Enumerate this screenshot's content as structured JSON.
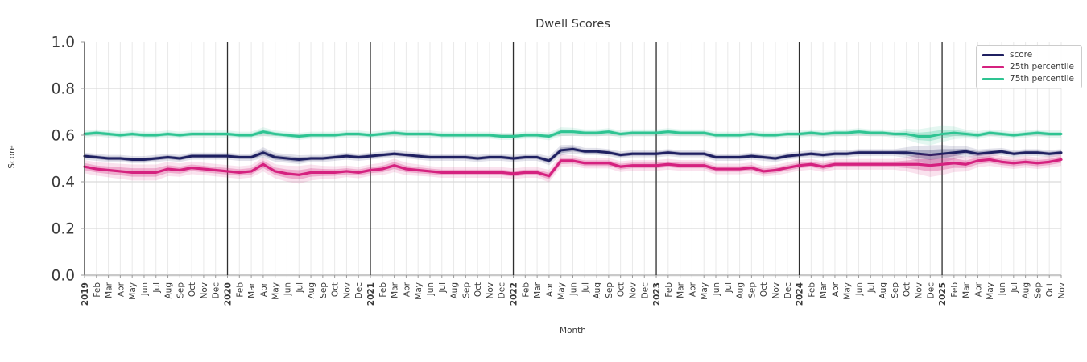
{
  "chart_data": {
    "type": "line",
    "title": "Dwell Scores",
    "xlabel": "Month",
    "ylabel": "Score",
    "ylim": [
      0.0,
      1.0
    ],
    "yticks": [
      0.0,
      0.2,
      0.4,
      0.6,
      0.8,
      1.0
    ],
    "grid": true,
    "legend_position": "upper right",
    "x_labels": [
      "2019",
      "Feb",
      "Mar",
      "Apr",
      "May",
      "Jun",
      "Jul",
      "Aug",
      "Sep",
      "Oct",
      "Nov",
      "Dec",
      "2020",
      "Feb",
      "Mar",
      "Apr",
      "May",
      "Jun",
      "Jul",
      "Aug",
      "Sep",
      "Oct",
      "Nov",
      "Dec",
      "2021",
      "Feb",
      "Mar",
      "Apr",
      "May",
      "Jun",
      "Jul",
      "Aug",
      "Sep",
      "Oct",
      "Nov",
      "Dec",
      "2022",
      "Feb",
      "Mar",
      "Apr",
      "May",
      "Jun",
      "Jul",
      "Aug",
      "Sep",
      "Oct",
      "Nov",
      "Dec",
      "2023",
      "Feb",
      "Mar",
      "Apr",
      "May",
      "Jun",
      "Jul",
      "Aug",
      "Sep",
      "Oct",
      "Nov",
      "Dec",
      "2024",
      "Feb",
      "Mar",
      "Apr",
      "May",
      "Jun",
      "Jul",
      "Aug",
      "Sep",
      "Oct",
      "Nov",
      "Dec",
      "2025",
      "Feb",
      "Mar",
      "Apr",
      "May",
      "Jun",
      "Jul",
      "Aug",
      "Sep",
      "Oct",
      "Nov"
    ],
    "series": [
      {
        "name": "score",
        "color": "#1f2061",
        "line_width": 3,
        "values": [
          0.51,
          0.505,
          0.5,
          0.5,
          0.495,
          0.495,
          0.5,
          0.505,
          0.5,
          0.51,
          0.51,
          0.51,
          0.51,
          0.505,
          0.505,
          0.525,
          0.505,
          0.5,
          0.495,
          0.5,
          0.5,
          0.505,
          0.51,
          0.505,
          0.51,
          0.515,
          0.52,
          0.515,
          0.51,
          0.505,
          0.505,
          0.505,
          0.505,
          0.5,
          0.505,
          0.505,
          0.5,
          0.505,
          0.505,
          0.49,
          0.535,
          0.54,
          0.53,
          0.53,
          0.525,
          0.515,
          0.52,
          0.52,
          0.52,
          0.525,
          0.52,
          0.52,
          0.52,
          0.505,
          0.505,
          0.505,
          0.51,
          0.505,
          0.5,
          0.51,
          0.515,
          0.52,
          0.515,
          0.52,
          0.52,
          0.525,
          0.525,
          0.525,
          0.525,
          0.525,
          0.52,
          0.515,
          0.52,
          0.525,
          0.53,
          0.52,
          0.525,
          0.53,
          0.52,
          0.525,
          0.525,
          0.52,
          0.525
        ],
        "band": [
          0.008,
          0.008,
          0.008,
          0.008,
          0.008,
          0.008,
          0.008,
          0.008,
          0.008,
          0.008,
          0.008,
          0.008,
          0.008,
          0.008,
          0.008,
          0.012,
          0.01,
          0.01,
          0.01,
          0.008,
          0.008,
          0.008,
          0.008,
          0.008,
          0.008,
          0.008,
          0.008,
          0.008,
          0.008,
          0.008,
          0.008,
          0.008,
          0.008,
          0.008,
          0.008,
          0.008,
          0.008,
          0.008,
          0.008,
          0.01,
          0.012,
          0.01,
          0.008,
          0.008,
          0.008,
          0.008,
          0.008,
          0.008,
          0.008,
          0.008,
          0.008,
          0.008,
          0.008,
          0.008,
          0.008,
          0.008,
          0.008,
          0.008,
          0.008,
          0.008,
          0.008,
          0.008,
          0.008,
          0.008,
          0.008,
          0.008,
          0.008,
          0.008,
          0.008,
          0.012,
          0.018,
          0.022,
          0.02,
          0.015,
          0.012,
          0.01,
          0.009,
          0.008,
          0.008,
          0.008,
          0.008,
          0.008,
          0.008
        ]
      },
      {
        "name": "25th percentile",
        "color": "#d5217f",
        "line_width": 3.2,
        "values": [
          0.465,
          0.455,
          0.45,
          0.445,
          0.44,
          0.44,
          0.44,
          0.455,
          0.45,
          0.46,
          0.455,
          0.45,
          0.445,
          0.44,
          0.445,
          0.475,
          0.445,
          0.435,
          0.43,
          0.44,
          0.44,
          0.44,
          0.445,
          0.44,
          0.45,
          0.455,
          0.47,
          0.455,
          0.45,
          0.445,
          0.44,
          0.44,
          0.44,
          0.44,
          0.44,
          0.44,
          0.435,
          0.44,
          0.44,
          0.425,
          0.49,
          0.49,
          0.48,
          0.48,
          0.48,
          0.465,
          0.47,
          0.47,
          0.47,
          0.475,
          0.47,
          0.47,
          0.47,
          0.455,
          0.455,
          0.455,
          0.46,
          0.445,
          0.45,
          0.46,
          0.47,
          0.475,
          0.465,
          0.475,
          0.475,
          0.475,
          0.475,
          0.475,
          0.475,
          0.475,
          0.475,
          0.47,
          0.475,
          0.48,
          0.475,
          0.49,
          0.495,
          0.485,
          0.48,
          0.485,
          0.48,
          0.485,
          0.495
        ],
        "band": [
          0.015,
          0.015,
          0.016,
          0.017,
          0.018,
          0.018,
          0.018,
          0.016,
          0.015,
          0.014,
          0.014,
          0.014,
          0.014,
          0.014,
          0.014,
          0.016,
          0.016,
          0.018,
          0.02,
          0.018,
          0.015,
          0.014,
          0.013,
          0.013,
          0.013,
          0.014,
          0.015,
          0.014,
          0.013,
          0.012,
          0.012,
          0.012,
          0.012,
          0.012,
          0.012,
          0.012,
          0.012,
          0.012,
          0.012,
          0.014,
          0.014,
          0.012,
          0.012,
          0.012,
          0.012,
          0.012,
          0.012,
          0.012,
          0.012,
          0.012,
          0.012,
          0.012,
          0.012,
          0.012,
          0.012,
          0.012,
          0.012,
          0.012,
          0.012,
          0.012,
          0.012,
          0.012,
          0.012,
          0.012,
          0.012,
          0.012,
          0.012,
          0.012,
          0.012,
          0.016,
          0.022,
          0.026,
          0.024,
          0.02,
          0.016,
          0.015,
          0.014,
          0.013,
          0.013,
          0.013,
          0.013,
          0.013,
          0.014
        ]
      },
      {
        "name": "75th percentile",
        "color": "#2ec492",
        "line_width": 3,
        "values": [
          0.605,
          0.61,
          0.605,
          0.6,
          0.605,
          0.6,
          0.6,
          0.605,
          0.6,
          0.605,
          0.605,
          0.605,
          0.605,
          0.6,
          0.6,
          0.615,
          0.605,
          0.6,
          0.595,
          0.6,
          0.6,
          0.6,
          0.605,
          0.605,
          0.6,
          0.605,
          0.61,
          0.605,
          0.605,
          0.605,
          0.6,
          0.6,
          0.6,
          0.6,
          0.6,
          0.595,
          0.595,
          0.6,
          0.6,
          0.595,
          0.615,
          0.615,
          0.61,
          0.61,
          0.615,
          0.605,
          0.61,
          0.61,
          0.61,
          0.615,
          0.61,
          0.61,
          0.61,
          0.6,
          0.6,
          0.6,
          0.605,
          0.6,
          0.6,
          0.605,
          0.605,
          0.61,
          0.605,
          0.61,
          0.61,
          0.615,
          0.61,
          0.61,
          0.605,
          0.605,
          0.595,
          0.595,
          0.605,
          0.61,
          0.605,
          0.6,
          0.61,
          0.605,
          0.6,
          0.605,
          0.61,
          0.605,
          0.605
        ],
        "band": [
          0.008,
          0.008,
          0.008,
          0.008,
          0.008,
          0.008,
          0.008,
          0.008,
          0.008,
          0.008,
          0.008,
          0.008,
          0.008,
          0.008,
          0.008,
          0.01,
          0.008,
          0.008,
          0.008,
          0.008,
          0.008,
          0.008,
          0.008,
          0.008,
          0.008,
          0.008,
          0.008,
          0.008,
          0.008,
          0.008,
          0.008,
          0.008,
          0.008,
          0.008,
          0.008,
          0.008,
          0.008,
          0.008,
          0.008,
          0.009,
          0.01,
          0.009,
          0.008,
          0.008,
          0.008,
          0.008,
          0.008,
          0.008,
          0.008,
          0.008,
          0.008,
          0.008,
          0.008,
          0.008,
          0.008,
          0.008,
          0.008,
          0.008,
          0.008,
          0.008,
          0.008,
          0.008,
          0.008,
          0.008,
          0.008,
          0.008,
          0.008,
          0.008,
          0.008,
          0.012,
          0.016,
          0.02,
          0.018,
          0.014,
          0.01,
          0.009,
          0.008,
          0.008,
          0.008,
          0.008,
          0.008,
          0.008,
          0.008
        ]
      }
    ],
    "colors": {
      "score": "#1f2061",
      "percentile_25": "#d5217f",
      "percentile_75": "#2ec492",
      "grid_minor": "#e9e9e9",
      "grid_major": "#d9d9d9",
      "year_line": "#2e2e2e",
      "text": "#3a3a3a"
    }
  }
}
